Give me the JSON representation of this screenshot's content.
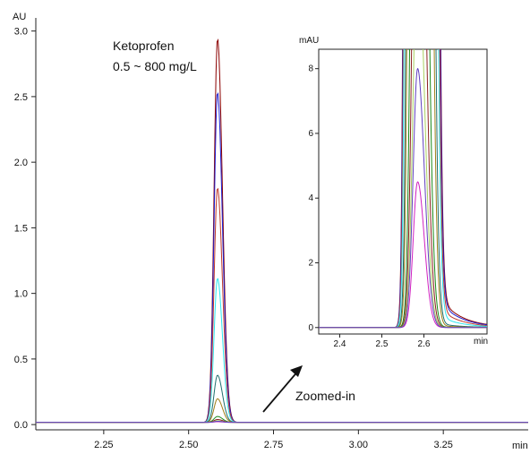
{
  "chart_data": {
    "type": "line",
    "main": {
      "y_unit": "AU",
      "x_unit": "min",
      "xlim": [
        2.05,
        3.5
      ],
      "ylim": [
        -0.04,
        3.1
      ],
      "x_ticks": [
        "2.25",
        "2.50",
        "2.75",
        "3.00",
        "3.25"
      ],
      "y_ticks": [
        "0.0",
        "0.5",
        "1.0",
        "1.5",
        "2.0",
        "2.5",
        "3.0"
      ],
      "annotation_title": "Ketoprofen",
      "annotation_range": "0.5 ~ 800 mg/L",
      "zoom_label": "Zoomed-in"
    },
    "inset": {
      "y_unit": "mAU",
      "x_unit": "min",
      "xlim": [
        2.35,
        2.75
      ],
      "ylim": [
        -0.2,
        8.6
      ],
      "x_ticks": [
        "2.4",
        "2.5",
        "2.6"
      ],
      "y_ticks": [
        "0",
        "2",
        "4",
        "6",
        "8"
      ]
    },
    "peak_center_min": 2.585,
    "series": [
      {
        "color": "#8b0000",
        "peak": 2.93
      },
      {
        "color": "#1f1fd0",
        "peak": 2.52
      },
      {
        "color": "#c0392b",
        "peak": 1.79
      },
      {
        "color": "#2ee6f0",
        "peak": 1.1
      },
      {
        "color": "#1f6f6f",
        "peak": 0.36
      },
      {
        "color": "#a0801a",
        "peak": 0.18
      },
      {
        "color": "#1a8a1a",
        "peak": 0.045
      },
      {
        "color": "#8b2020",
        "peak": 0.022
      },
      {
        "color": "#d020c0",
        "peak": 0.0045
      },
      {
        "color": "#a8d060",
        "peak": 0.012
      },
      {
        "color": "#6040c0",
        "peak": 0.008
      }
    ]
  }
}
